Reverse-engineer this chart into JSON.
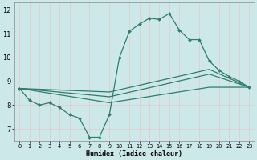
{
  "xlabel": "Humidex (Indice chaleur)",
  "xlim": [
    -0.5,
    23.5
  ],
  "ylim": [
    6.5,
    12.3
  ],
  "xticks": [
    0,
    1,
    2,
    3,
    4,
    5,
    6,
    7,
    8,
    9,
    10,
    11,
    12,
    13,
    14,
    15,
    16,
    17,
    18,
    19,
    20,
    21,
    22,
    23
  ],
  "yticks": [
    7,
    8,
    9,
    10,
    11,
    12
  ],
  "background_color": "#cce8e8",
  "grid_color": "#e8c8c8",
  "line_color": "#2e7d6e",
  "main_line": {
    "x": [
      0,
      1,
      2,
      3,
      4,
      5,
      6,
      7,
      8,
      9,
      10,
      11,
      12,
      13,
      14,
      15,
      16,
      17,
      18,
      19,
      20,
      21,
      22,
      23
    ],
    "y": [
      8.7,
      8.2,
      8.0,
      8.1,
      7.9,
      7.6,
      7.45,
      6.65,
      6.65,
      7.6,
      10.0,
      11.1,
      11.4,
      11.65,
      11.6,
      11.85,
      11.15,
      10.75,
      10.75,
      9.85,
      9.45,
      9.2,
      9.0,
      8.75
    ]
  },
  "trend1": {
    "x": [
      0,
      9,
      19,
      23
    ],
    "y": [
      8.7,
      8.55,
      9.5,
      8.75
    ]
  },
  "trend2": {
    "x": [
      0,
      9,
      19,
      23
    ],
    "y": [
      8.7,
      8.35,
      9.3,
      8.75
    ]
  },
  "trend3": {
    "x": [
      0,
      9,
      19,
      23
    ],
    "y": [
      8.7,
      8.1,
      8.75,
      8.75
    ]
  }
}
